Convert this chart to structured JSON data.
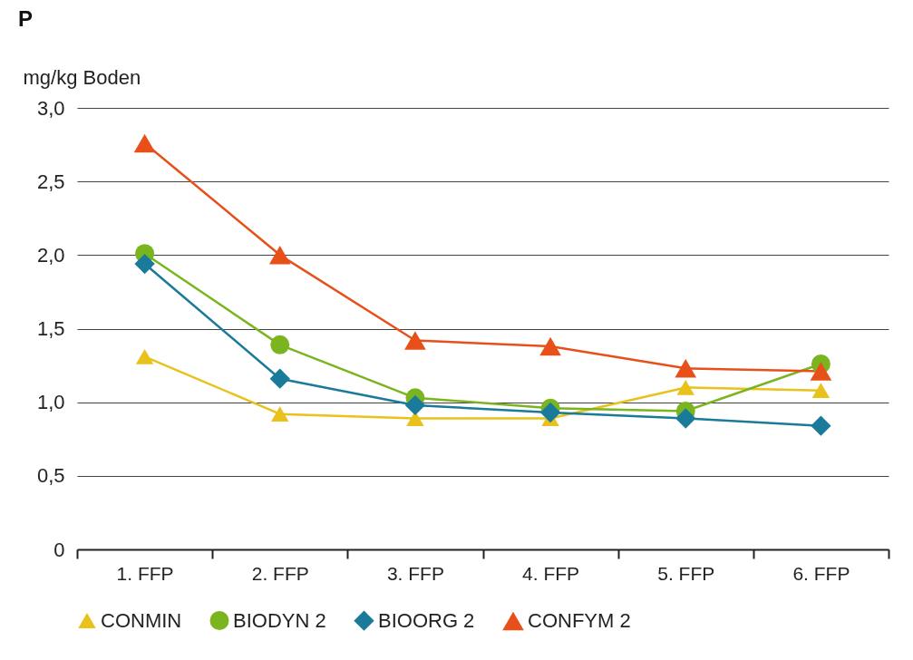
{
  "chart_data": {
    "type": "line",
    "title": "P",
    "ylabel": "mg/kg Boden",
    "categories": [
      "1. FFP",
      "2. FFP",
      "3. FFP",
      "4. FFP",
      "5. FFP",
      "6. FFP"
    ],
    "series": [
      {
        "name": "CONMIN",
        "color": "#e8c21a",
        "marker": "triangle",
        "values": [
          1.31,
          0.92,
          0.89,
          0.89,
          1.1,
          1.08
        ]
      },
      {
        "name": "BIODYN 2",
        "color": "#7ab520",
        "marker": "circle",
        "values": [
          2.01,
          1.39,
          1.03,
          0.96,
          0.94,
          1.26
        ]
      },
      {
        "name": "BIOORG 2",
        "color": "#1a7a9a",
        "marker": "diamond",
        "values": [
          1.94,
          1.16,
          0.98,
          0.93,
          0.89,
          0.84
        ]
      },
      {
        "name": "CONFYM 2",
        "color": "#e8501a",
        "marker": "triangle",
        "values": [
          2.76,
          2.0,
          1.42,
          1.38,
          1.23,
          1.21
        ]
      }
    ],
    "ylim": [
      0,
      3
    ],
    "yticks": [
      0,
      {
        "value": 0.5,
        "label": "0,5"
      },
      {
        "value": 1,
        "label": "1,0"
      },
      {
        "value": 1.5,
        "label": "1,5"
      },
      {
        "value": 2,
        "label": "2,0"
      },
      {
        "value": 2.5,
        "label": "2,5"
      },
      {
        "value": 3,
        "label": "3,0"
      }
    ],
    "grid": "y",
    "legend": "bottom",
    "line_style": "solid"
  }
}
